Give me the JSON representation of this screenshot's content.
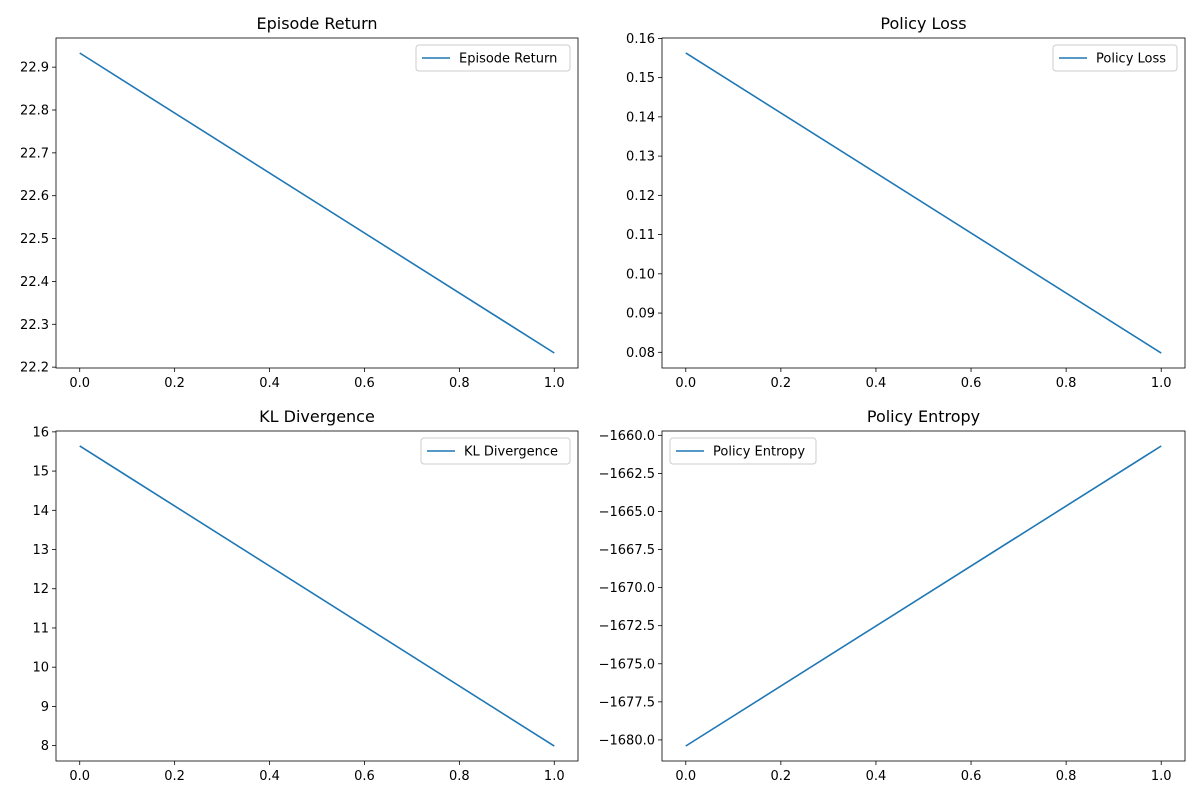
{
  "chart_data": [
    {
      "type": "line",
      "title": "Episode Return",
      "xlabel": "",
      "ylabel": "",
      "x": [
        0,
        1
      ],
      "series": [
        {
          "name": "Episode Return",
          "values": [
            22.933,
            22.233
          ]
        }
      ],
      "xlim": [
        -0.05,
        1.05
      ],
      "ylim": [
        22.198,
        22.968
      ],
      "xticks": [
        0.0,
        0.2,
        0.4,
        0.6,
        0.8,
        1.0
      ],
      "xtick_labels": [
        "0.0",
        "0.2",
        "0.4",
        "0.6",
        "0.8",
        "1.0"
      ],
      "yticks": [
        22.2,
        22.3,
        22.4,
        22.5,
        22.6,
        22.7,
        22.8,
        22.9
      ],
      "ytick_labels": [
        "22.2",
        "22.3",
        "22.4",
        "22.5",
        "22.6",
        "22.7",
        "22.8",
        "22.9"
      ],
      "legend_position": "top-right",
      "grid": false,
      "color": "#1f77b4"
    },
    {
      "type": "line",
      "title": "Policy Loss",
      "xlabel": "",
      "ylabel": "",
      "x": [
        0,
        1
      ],
      "series": [
        {
          "name": "Policy Loss",
          "values": [
            0.1563,
            0.0798
          ]
        }
      ],
      "xlim": [
        -0.05,
        1.05
      ],
      "ylim": [
        0.076,
        0.1601
      ],
      "xticks": [
        0.0,
        0.2,
        0.4,
        0.6,
        0.8,
        1.0
      ],
      "xtick_labels": [
        "0.0",
        "0.2",
        "0.4",
        "0.6",
        "0.8",
        "1.0"
      ],
      "yticks": [
        0.08,
        0.09,
        0.1,
        0.11,
        0.12,
        0.13,
        0.14,
        0.15,
        0.16
      ],
      "ytick_labels": [
        "0.08",
        "0.09",
        "0.10",
        "0.11",
        "0.12",
        "0.13",
        "0.14",
        "0.15",
        "0.16"
      ],
      "legend_position": "top-right",
      "grid": false,
      "color": "#1f77b4"
    },
    {
      "type": "line",
      "title": "KL Divergence",
      "xlabel": "",
      "ylabel": "",
      "x": [
        0,
        1
      ],
      "series": [
        {
          "name": "KL Divergence",
          "values": [
            15.64,
            7.99
          ]
        }
      ],
      "xlim": [
        -0.05,
        1.05
      ],
      "ylim": [
        7.608,
        16.022
      ],
      "xticks": [
        0.0,
        0.2,
        0.4,
        0.6,
        0.8,
        1.0
      ],
      "xtick_labels": [
        "0.0",
        "0.2",
        "0.4",
        "0.6",
        "0.8",
        "1.0"
      ],
      "yticks": [
        8,
        9,
        10,
        11,
        12,
        13,
        14,
        15,
        16
      ],
      "ytick_labels": [
        "8",
        "9",
        "10",
        "11",
        "12",
        "13",
        "14",
        "15",
        "16"
      ],
      "legend_position": "top-right",
      "grid": false,
      "color": "#1f77b4"
    },
    {
      "type": "line",
      "title": "Policy Entropy",
      "xlabel": "",
      "ylabel": "",
      "x": [
        0,
        1
      ],
      "series": [
        {
          "name": "Policy Entropy",
          "values": [
            -1680.4,
            -1660.7
          ]
        }
      ],
      "xlim": [
        -0.05,
        1.05
      ],
      "ylim": [
        -1681.385,
        -1659.715
      ],
      "xticks": [
        0.0,
        0.2,
        0.4,
        0.6,
        0.8,
        1.0
      ],
      "xtick_labels": [
        "0.0",
        "0.2",
        "0.4",
        "0.6",
        "0.8",
        "1.0"
      ],
      "yticks": [
        -1680.0,
        -1677.5,
        -1675.0,
        -1672.5,
        -1670.0,
        -1667.5,
        -1665.0,
        -1662.5,
        -1660.0
      ],
      "ytick_labels": [
        "−1680.0",
        "−1677.5",
        "−1675.0",
        "−1672.5",
        "−1670.0",
        "−1667.5",
        "−1665.0",
        "−1662.5",
        "−1660.0"
      ],
      "legend_position": "top-left",
      "grid": false,
      "color": "#1f77b4"
    }
  ]
}
